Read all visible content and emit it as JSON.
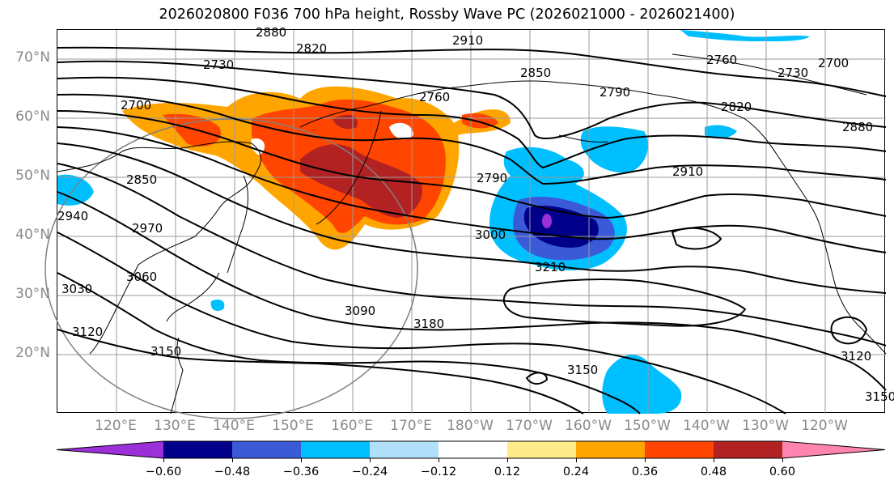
{
  "title": "2026020800 F036 700 hPa height, Rossby Wave PC (2026021000 - 2026021400)",
  "map": {
    "projection": "cylindrical",
    "lon_range": [
      110,
      250
    ],
    "lat_range": [
      10,
      75
    ],
    "latitude_labels": [
      "70°N",
      "60°N",
      "50°N",
      "40°N",
      "30°N",
      "20°N"
    ],
    "longitude_labels": [
      "120°E",
      "130°E",
      "140°E",
      "150°E",
      "160°E",
      "170°E",
      "180°W",
      "170°W",
      "160°W",
      "150°W",
      "140°W",
      "130°W",
      "120°W"
    ],
    "contour_labels": [
      "2880",
      "2820",
      "2910",
      "2730",
      "2850",
      "2760",
      "2790",
      "2760",
      "2730",
      "2700",
      "2820",
      "2880",
      "2700",
      "2850",
      "2910",
      "2940",
      "2970",
      "2790",
      "3060",
      "3030",
      "3000",
      "3210",
      "3090",
      "3180",
      "3120",
      "3150",
      "3150",
      "3120",
      "3150"
    ],
    "features": [
      "coastlines",
      "country-borders",
      "state-borders",
      "gridlines",
      "height-contours",
      "filled-pc-anomaly",
      "circle-region"
    ]
  },
  "colorbar": {
    "ticks": [
      "−0.60",
      "−0.48",
      "−0.36",
      "−0.24",
      "−0.12",
      "0.12",
      "0.24",
      "0.36",
      "0.48",
      "0.60"
    ],
    "colors": [
      "#9b30d9",
      "#00008b",
      "#3a5ad8",
      "#00bfff",
      "#b0e0fa",
      "#ffffff",
      "#ffeb8a",
      "#ffa500",
      "#ff4500",
      "#b22222",
      "#ff85b0"
    ],
    "extend": "both"
  }
}
